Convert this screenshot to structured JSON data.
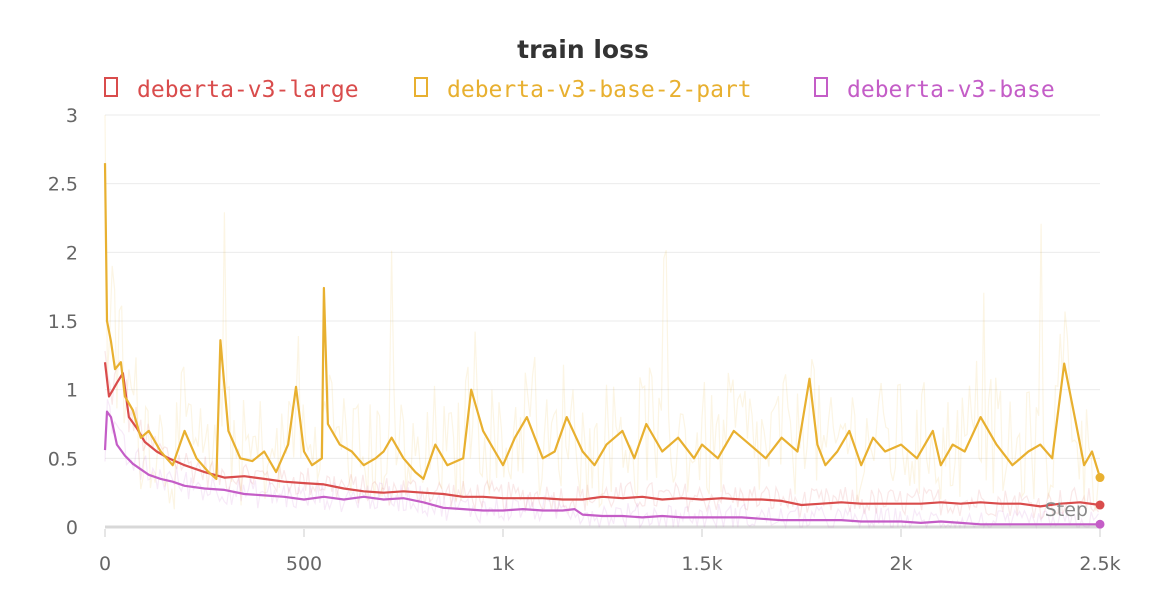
{
  "chart_data": {
    "type": "line",
    "title": "train loss",
    "xlabel": "Step",
    "ylabel": "",
    "xlim": [
      0,
      2500
    ],
    "ylim": [
      0,
      3
    ],
    "x_ticks": [
      {
        "value": 0,
        "label": "0"
      },
      {
        "value": 500,
        "label": "500"
      },
      {
        "value": 1000,
        "label": "1k"
      },
      {
        "value": 1500,
        "label": "1.5k"
      },
      {
        "value": 2000,
        "label": "2k"
      },
      {
        "value": 2500,
        "label": "2.5k"
      }
    ],
    "y_ticks": [
      {
        "value": 0,
        "label": "0"
      },
      {
        "value": 0.5,
        "label": "0.5"
      },
      {
        "value": 1,
        "label": "1"
      },
      {
        "value": 1.5,
        "label": "1.5"
      },
      {
        "value": 2,
        "label": "2"
      },
      {
        "value": 2.5,
        "label": "2.5"
      },
      {
        "value": 3,
        "label": "3"
      }
    ],
    "grid": true,
    "legend_position": "top",
    "series": [
      {
        "name": "deberta-v3-large",
        "color": "#d94c4c",
        "x": [
          0,
          10,
          20,
          30,
          45,
          60,
          80,
          100,
          130,
          160,
          200,
          250,
          300,
          350,
          400,
          450,
          500,
          550,
          600,
          650,
          700,
          750,
          800,
          850,
          900,
          950,
          1000,
          1050,
          1100,
          1150,
          1200,
          1250,
          1300,
          1350,
          1400,
          1450,
          1500,
          1550,
          1600,
          1650,
          1700,
          1750,
          1800,
          1850,
          1900,
          1950,
          2000,
          2050,
          2100,
          2150,
          2200,
          2250,
          2300,
          2350,
          2400,
          2450,
          2500
        ],
        "values": [
          1.2,
          0.95,
          1.0,
          1.05,
          1.12,
          0.8,
          0.72,
          0.62,
          0.55,
          0.5,
          0.45,
          0.4,
          0.36,
          0.37,
          0.35,
          0.33,
          0.32,
          0.31,
          0.28,
          0.26,
          0.25,
          0.26,
          0.25,
          0.24,
          0.22,
          0.22,
          0.21,
          0.21,
          0.21,
          0.2,
          0.2,
          0.22,
          0.21,
          0.22,
          0.2,
          0.21,
          0.2,
          0.21,
          0.2,
          0.2,
          0.19,
          0.16,
          0.17,
          0.18,
          0.17,
          0.17,
          0.17,
          0.17,
          0.18,
          0.17,
          0.18,
          0.17,
          0.17,
          0.15,
          0.17,
          0.18,
          0.16
        ],
        "end_value": 0.16
      },
      {
        "name": "deberta-v3-base-2-part",
        "color": "#e8b030",
        "x": [
          0,
          5,
          15,
          25,
          40,
          50,
          70,
          90,
          110,
          140,
          170,
          200,
          230,
          260,
          280,
          290,
          310,
          340,
          370,
          400,
          430,
          460,
          480,
          500,
          520,
          545,
          550,
          560,
          590,
          620,
          650,
          680,
          700,
          720,
          750,
          780,
          800,
          830,
          860,
          900,
          920,
          950,
          980,
          1000,
          1030,
          1060,
          1100,
          1130,
          1160,
          1200,
          1230,
          1260,
          1300,
          1330,
          1360,
          1400,
          1440,
          1480,
          1500,
          1540,
          1580,
          1620,
          1660,
          1700,
          1740,
          1770,
          1790,
          1810,
          1840,
          1870,
          1900,
          1930,
          1960,
          2000,
          2040,
          2080,
          2100,
          2130,
          2160,
          2200,
          2240,
          2280,
          2320,
          2350,
          2380,
          2410,
          2440,
          2460,
          2480,
          2500
        ],
        "values": [
          2.65,
          1.5,
          1.35,
          1.15,
          1.2,
          0.95,
          0.85,
          0.65,
          0.7,
          0.55,
          0.45,
          0.7,
          0.5,
          0.4,
          0.35,
          1.36,
          0.7,
          0.5,
          0.48,
          0.55,
          0.4,
          0.6,
          1.02,
          0.55,
          0.45,
          0.5,
          1.74,
          0.75,
          0.6,
          0.55,
          0.45,
          0.5,
          0.55,
          0.65,
          0.5,
          0.4,
          0.35,
          0.6,
          0.45,
          0.5,
          1.0,
          0.7,
          0.55,
          0.45,
          0.65,
          0.8,
          0.5,
          0.55,
          0.8,
          0.55,
          0.45,
          0.6,
          0.7,
          0.5,
          0.75,
          0.55,
          0.65,
          0.5,
          0.6,
          0.5,
          0.7,
          0.6,
          0.5,
          0.65,
          0.55,
          1.08,
          0.6,
          0.45,
          0.55,
          0.7,
          0.45,
          0.65,
          0.55,
          0.6,
          0.5,
          0.7,
          0.45,
          0.6,
          0.55,
          0.8,
          0.6,
          0.45,
          0.55,
          0.6,
          0.5,
          1.19,
          0.75,
          0.45,
          0.55,
          0.36
        ],
        "end_value": 0.36
      },
      {
        "name": "deberta-v3-base",
        "color": "#c45dc7",
        "x": [
          0,
          5,
          15,
          30,
          50,
          70,
          90,
          110,
          140,
          170,
          200,
          250,
          300,
          350,
          400,
          450,
          500,
          550,
          600,
          650,
          700,
          750,
          800,
          850,
          900,
          950,
          1000,
          1050,
          1100,
          1150,
          1180,
          1200,
          1250,
          1300,
          1350,
          1400,
          1450,
          1500,
          1550,
          1600,
          1650,
          1700,
          1750,
          1800,
          1850,
          1900,
          1950,
          2000,
          2050,
          2100,
          2150,
          2200,
          2250,
          2300,
          2350,
          2400,
          2450,
          2500
        ],
        "values": [
          0.56,
          0.84,
          0.8,
          0.6,
          0.52,
          0.46,
          0.42,
          0.38,
          0.35,
          0.33,
          0.3,
          0.28,
          0.27,
          0.24,
          0.23,
          0.22,
          0.2,
          0.22,
          0.2,
          0.22,
          0.2,
          0.21,
          0.18,
          0.14,
          0.13,
          0.12,
          0.12,
          0.13,
          0.12,
          0.12,
          0.13,
          0.09,
          0.08,
          0.08,
          0.07,
          0.08,
          0.07,
          0.07,
          0.07,
          0.07,
          0.06,
          0.05,
          0.05,
          0.05,
          0.05,
          0.04,
          0.04,
          0.04,
          0.03,
          0.04,
          0.03,
          0.02,
          0.02,
          0.02,
          0.02,
          0.02,
          0.02,
          0.02
        ],
        "end_value": 0.02
      }
    ]
  }
}
